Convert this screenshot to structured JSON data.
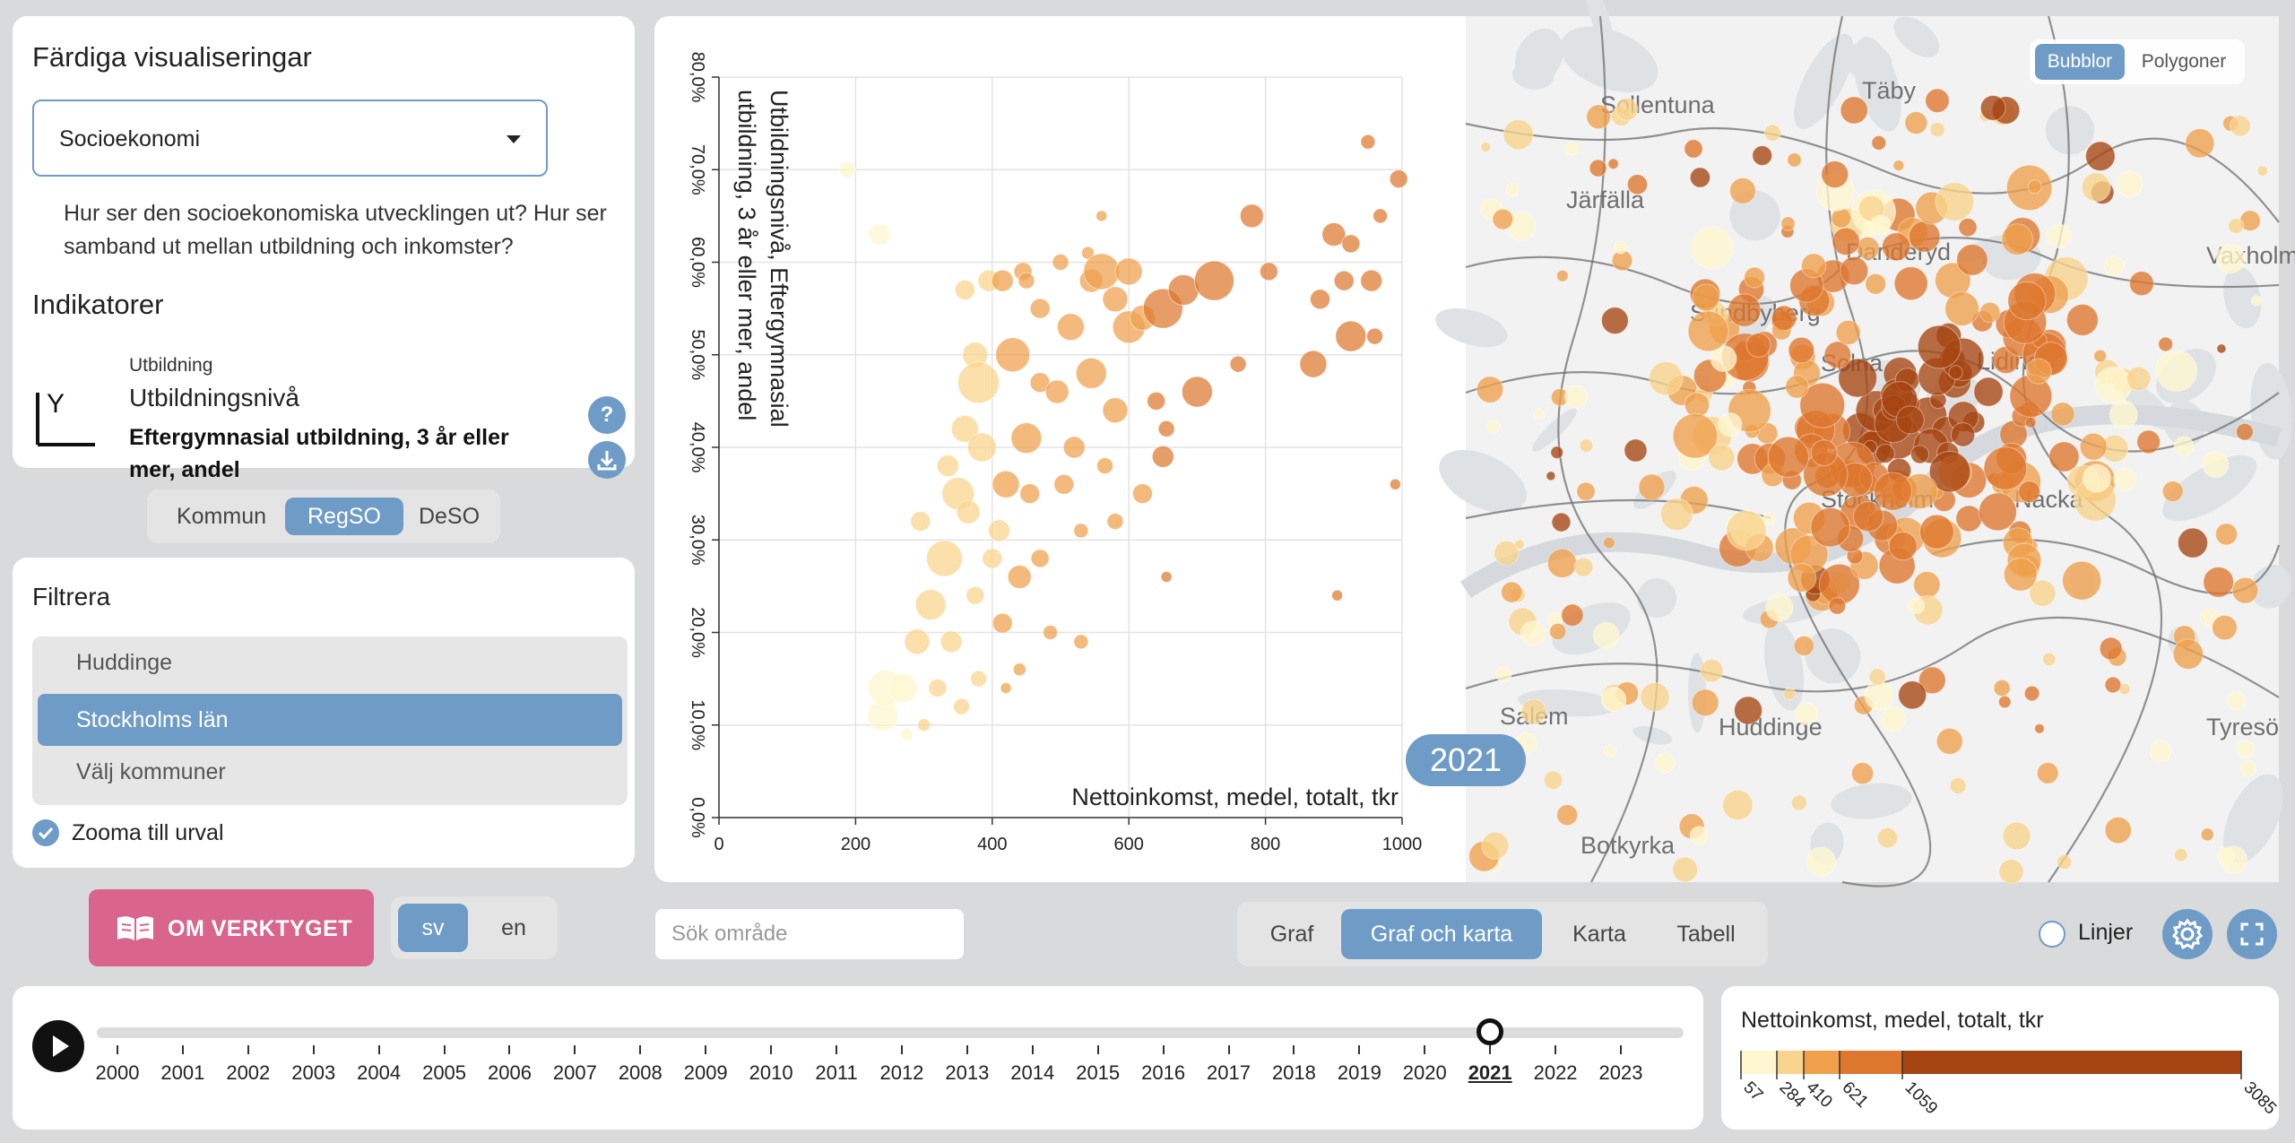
{
  "info": {
    "title": "Färdiga visualiseringar",
    "dropdown_value": "Socioekonomi",
    "description": "Hur ser den socioekonomiska utvecklingen ut? Hur ser samband ut mellan utbildning och inkomster?",
    "indicators_title": "Indikatorer",
    "indicator": {
      "category": "Utbildning",
      "name": "Utbildningsnivå",
      "description": "Eftergymnasial utbildning, 3 år eller mer, andel",
      "icon_letter": "Y",
      "help": "?"
    }
  },
  "geo_levels": {
    "options": [
      "Kommun",
      "RegSO",
      "DeSO"
    ],
    "selected": "RegSO"
  },
  "filter": {
    "title": "Filtrera",
    "items": [
      "Huddinge",
      "Stockholms län",
      "Välj kommuner"
    ],
    "selected": "Stockholms län",
    "zoom_label": "Zooma till urval"
  },
  "about": {
    "label": "OM VERKTYGET"
  },
  "language": {
    "options": [
      "sv",
      "en"
    ],
    "selected": "sv"
  },
  "search": {
    "placeholder": "Sök område"
  },
  "views": {
    "options": [
      "Graf",
      "Graf och karta",
      "Karta",
      "Tabell"
    ],
    "selected": "Graf och karta"
  },
  "lines": {
    "label": "Linjer"
  },
  "map_mode": {
    "options": [
      "Bubblor",
      "Polygoner"
    ],
    "selected": "Bubblor"
  },
  "map_labels": [
    "Sollentuna",
    "Täby",
    "Järfälla",
    "Danderyd",
    "Vaxholm",
    "Sundbyberg",
    "Solna",
    "Lidingö",
    "Stockholm",
    "Nacka",
    "Salem",
    "Huddinge",
    "Tyresö",
    "Botkyrka"
  ],
  "timeline": {
    "years": [
      "2000",
      "2001",
      "2002",
      "2003",
      "2004",
      "2005",
      "2006",
      "2007",
      "2008",
      "2009",
      "2010",
      "2011",
      "2012",
      "2013",
      "2014",
      "2015",
      "2016",
      "2017",
      "2018",
      "2019",
      "2020",
      "2021",
      "2022",
      "2023"
    ],
    "current": "2021"
  },
  "legend": {
    "title": "Nettoinkomst, medel, totalt, tkr",
    "breaks": [
      "57",
      "284",
      "410",
      "621",
      "1059",
      "3085"
    ],
    "colors": [
      "#fff7cf",
      "#f9d48c",
      "#f0a04b",
      "#de772e",
      "#a64512"
    ]
  },
  "chart_data": {
    "type": "scatter",
    "title": "",
    "year_label": "2021",
    "xlabel": "Nettoinkomst,  medel,  totalt,  tkr",
    "ylabel": "Utbildningsnivå, Eftergymnasial utbildning, 3 år eller mer, andel",
    "xlim": [
      0,
      1000
    ],
    "ylim": [
      0,
      80
    ],
    "x_ticks": [
      "0",
      "200",
      "400",
      "600",
      "800",
      "1000"
    ],
    "y_ticks": [
      "0,0%",
      "10,0%",
      "20,0%",
      "30,0%",
      "40,0%",
      "50,0%",
      "60,0%",
      "70,0%",
      "80,0%"
    ],
    "points": [
      {
        "x": 188,
        "y": 70,
        "r": 9
      },
      {
        "x": 235,
        "y": 63,
        "r": 12
      },
      {
        "x": 950,
        "y": 73,
        "r": 8
      },
      {
        "x": 995,
        "y": 69,
        "r": 10
      },
      {
        "x": 968,
        "y": 65,
        "r": 8
      },
      {
        "x": 900,
        "y": 63,
        "r": 13
      },
      {
        "x": 925,
        "y": 62,
        "r": 10
      },
      {
        "x": 780,
        "y": 65,
        "r": 13
      },
      {
        "x": 805,
        "y": 59,
        "r": 10
      },
      {
        "x": 915,
        "y": 58,
        "r": 11
      },
      {
        "x": 955,
        "y": 58,
        "r": 12
      },
      {
        "x": 880,
        "y": 56,
        "r": 11
      },
      {
        "x": 925,
        "y": 52,
        "r": 17
      },
      {
        "x": 960,
        "y": 52,
        "r": 9
      },
      {
        "x": 870,
        "y": 49,
        "r": 15
      },
      {
        "x": 700,
        "y": 46,
        "r": 17
      },
      {
        "x": 760,
        "y": 49,
        "r": 9
      },
      {
        "x": 725,
        "y": 58,
        "r": 22
      },
      {
        "x": 680,
        "y": 57,
        "r": 17
      },
      {
        "x": 650,
        "y": 55,
        "r": 22
      },
      {
        "x": 640,
        "y": 45,
        "r": 10
      },
      {
        "x": 655,
        "y": 42,
        "r": 9
      },
      {
        "x": 650,
        "y": 39,
        "r": 12
      },
      {
        "x": 620,
        "y": 35,
        "r": 11
      },
      {
        "x": 580,
        "y": 32,
        "r": 9
      },
      {
        "x": 530,
        "y": 31,
        "r": 8
      },
      {
        "x": 655,
        "y": 26,
        "r": 6
      },
      {
        "x": 905,
        "y": 24,
        "r": 6
      },
      {
        "x": 990,
        "y": 36,
        "r": 6
      },
      {
        "x": 530,
        "y": 19,
        "r": 8
      },
      {
        "x": 560,
        "y": 59,
        "r": 20
      },
      {
        "x": 600,
        "y": 53,
        "r": 18
      },
      {
        "x": 580,
        "y": 44,
        "r": 14
      },
      {
        "x": 545,
        "y": 48,
        "r": 17
      },
      {
        "x": 515,
        "y": 53,
        "r": 15
      },
      {
        "x": 495,
        "y": 46,
        "r": 13
      },
      {
        "x": 470,
        "y": 55,
        "r": 11
      },
      {
        "x": 450,
        "y": 41,
        "r": 17
      },
      {
        "x": 430,
        "y": 50,
        "r": 19
      },
      {
        "x": 420,
        "y": 36,
        "r": 15
      },
      {
        "x": 410,
        "y": 31,
        "r": 12
      },
      {
        "x": 440,
        "y": 26,
        "r": 13
      },
      {
        "x": 415,
        "y": 21,
        "r": 11
      },
      {
        "x": 470,
        "y": 28,
        "r": 10
      },
      {
        "x": 505,
        "y": 36,
        "r": 11
      },
      {
        "x": 485,
        "y": 20,
        "r": 8
      },
      {
        "x": 440,
        "y": 16,
        "r": 7
      },
      {
        "x": 420,
        "y": 14,
        "r": 6
      },
      {
        "x": 520,
        "y": 40,
        "r": 12
      },
      {
        "x": 565,
        "y": 38,
        "r": 9
      },
      {
        "x": 450,
        "y": 58,
        "r": 9
      },
      {
        "x": 415,
        "y": 58,
        "r": 12
      },
      {
        "x": 380,
        "y": 47,
        "r": 23
      },
      {
        "x": 360,
        "y": 42,
        "r": 15
      },
      {
        "x": 350,
        "y": 35,
        "r": 18
      },
      {
        "x": 330,
        "y": 28,
        "r": 20
      },
      {
        "x": 310,
        "y": 23,
        "r": 17
      },
      {
        "x": 290,
        "y": 19,
        "r": 14
      },
      {
        "x": 270,
        "y": 14,
        "r": 16
      },
      {
        "x": 245,
        "y": 14,
        "r": 20
      },
      {
        "x": 240,
        "y": 11,
        "r": 17
      },
      {
        "x": 295,
        "y": 32,
        "r": 11
      },
      {
        "x": 340,
        "y": 19,
        "r": 12
      },
      {
        "x": 375,
        "y": 24,
        "r": 10
      },
      {
        "x": 355,
        "y": 12,
        "r": 9
      },
      {
        "x": 300,
        "y": 10,
        "r": 7
      },
      {
        "x": 275,
        "y": 9,
        "r": 7
      },
      {
        "x": 360,
        "y": 57,
        "r": 11
      },
      {
        "x": 395,
        "y": 58,
        "r": 12
      },
      {
        "x": 375,
        "y": 50,
        "r": 14
      },
      {
        "x": 385,
        "y": 40,
        "r": 16
      },
      {
        "x": 365,
        "y": 33,
        "r": 13
      },
      {
        "x": 335,
        "y": 38,
        "r": 12
      },
      {
        "x": 400,
        "y": 28,
        "r": 11
      },
      {
        "x": 320,
        "y": 14,
        "r": 10
      },
      {
        "x": 380,
        "y": 15,
        "r": 9
      },
      {
        "x": 470,
        "y": 47,
        "r": 11
      },
      {
        "x": 455,
        "y": 35,
        "r": 11
      },
      {
        "x": 545,
        "y": 58,
        "r": 13
      },
      {
        "x": 600,
        "y": 59,
        "r": 15
      },
      {
        "x": 445,
        "y": 59,
        "r": 10
      },
      {
        "x": 500,
        "y": 60,
        "r": 9
      },
      {
        "x": 540,
        "y": 61,
        "r": 7
      },
      {
        "x": 560,
        "y": 65,
        "r": 6
      },
      {
        "x": 620,
        "y": 54,
        "r": 14
      },
      {
        "x": 580,
        "y": 56,
        "r": 14
      }
    ]
  }
}
